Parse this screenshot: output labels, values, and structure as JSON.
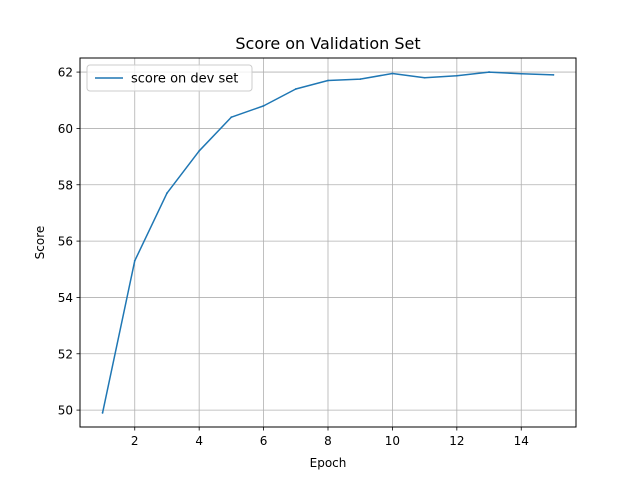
{
  "chart_data": {
    "type": "line",
    "title": "Score on Validation Set",
    "xlabel": "Epoch",
    "ylabel": "Score",
    "xlim": [
      0.3,
      15.7
    ],
    "ylim": [
      49.4,
      62.5
    ],
    "xticks": [
      2,
      4,
      6,
      8,
      10,
      12,
      14
    ],
    "yticks": [
      50,
      52,
      54,
      56,
      58,
      60,
      62
    ],
    "grid": true,
    "legend_position": "top-left",
    "series": [
      {
        "name": "score on dev set",
        "color": "#1f77b4",
        "x": [
          1,
          2,
          3,
          4,
          5,
          6,
          7,
          8,
          9,
          10,
          11,
          12,
          13,
          14,
          15
        ],
        "y": [
          49.9,
          55.3,
          57.7,
          59.2,
          60.4,
          60.8,
          61.4,
          61.7,
          61.75,
          61.95,
          61.8,
          61.87,
          62.0,
          61.94,
          61.9
        ]
      }
    ]
  }
}
